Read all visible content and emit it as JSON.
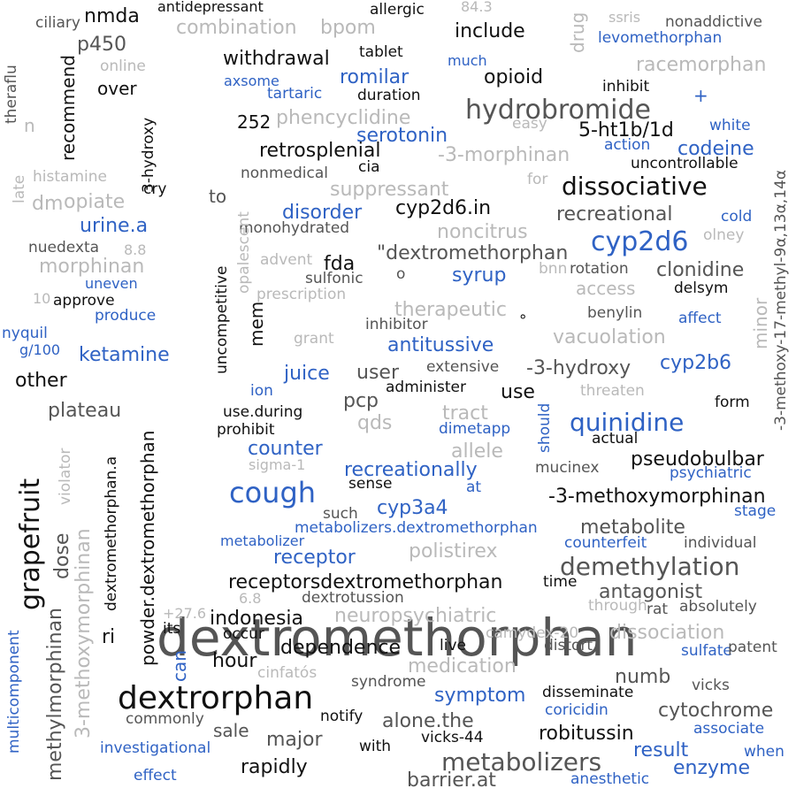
{
  "palette": {
    "black": "#111111",
    "dark": "#555555",
    "light": "#b9b9b9",
    "blue": "#2f62c4"
  },
  "words": [
    {
      "t": "dextromethorphan",
      "c": "dark"
    },
    {
      "t": "dextrorphan",
      "c": "black"
    },
    {
      "t": "grapefruit",
      "c": "black"
    },
    {
      "t": "cough",
      "c": "blue"
    },
    {
      "t": "hydrobromide",
      "c": "dark"
    },
    {
      "t": "dissociative",
      "c": "black"
    },
    {
      "t": "cyp2d6",
      "c": "blue"
    },
    {
      "t": "quinidine",
      "c": "blue"
    },
    {
      "t": "demethylation",
      "c": "dark"
    },
    {
      "t": "metabolizers",
      "c": "dark"
    },
    {
      "t": "withdrawal",
      "c": "black"
    },
    {
      "t": "nmda",
      "c": "black"
    },
    {
      "t": "include",
      "c": "black"
    },
    {
      "t": "combination",
      "c": "light"
    },
    {
      "t": "bpom",
      "c": "light"
    },
    {
      "t": "p450",
      "c": "dark"
    },
    {
      "t": "over",
      "c": "black"
    },
    {
      "t": "recommend",
      "c": "black"
    },
    {
      "t": "romilar",
      "c": "blue"
    },
    {
      "t": "opioid",
      "c": "black"
    },
    {
      "t": "racemorphan",
      "c": "light"
    },
    {
      "t": "tablet",
      "c": "black"
    },
    {
      "t": "duration",
      "c": "black"
    },
    {
      "t": "tartaric",
      "c": "blue"
    },
    {
      "t": "axsome",
      "c": "blue"
    },
    {
      "t": "much",
      "c": "blue"
    },
    {
      "t": "inhibit",
      "c": "black"
    },
    {
      "t": "252",
      "c": "black"
    },
    {
      "t": "phencyclidine",
      "c": "light"
    },
    {
      "t": "serotonin",
      "c": "blue"
    },
    {
      "t": "5-ht1b/1d",
      "c": "black"
    },
    {
      "t": "easy",
      "c": "light"
    },
    {
      "t": "white",
      "c": "blue"
    },
    {
      "t": "retrosplenial",
      "c": "black"
    },
    {
      "t": "-3-morphinan",
      "c": "light"
    },
    {
      "t": "codeine",
      "c": "blue"
    },
    {
      "t": "action",
      "c": "blue"
    },
    {
      "t": "uncontrollable",
      "c": "black"
    },
    {
      "t": "nonmedical",
      "c": "dark"
    },
    {
      "t": "cia",
      "c": "black"
    },
    {
      "t": "suppressant",
      "c": "light"
    },
    {
      "t": "histamine",
      "c": "light"
    },
    {
      "t": "cry",
      "c": "black"
    },
    {
      "t": "to",
      "c": "dark"
    },
    {
      "t": "dm",
      "c": "light"
    },
    {
      "t": "opiate",
      "c": "light"
    },
    {
      "t": "disorder",
      "c": "blue"
    },
    {
      "t": "cyp2d6.in",
      "c": "black"
    },
    {
      "t": "recreational",
      "c": "dark"
    },
    {
      "t": "cold",
      "c": "blue"
    },
    {
      "t": "urine.a",
      "c": "blue"
    },
    {
      "t": "monohydrated",
      "c": "dark"
    },
    {
      "t": "noncitrus",
      "c": "light"
    },
    {
      "t": "\"dextromethorphan",
      "c": "dark"
    },
    {
      "t": "olney",
      "c": "light"
    },
    {
      "t": "nuedexta",
      "c": "dark"
    },
    {
      "t": "8.8",
      "c": "light"
    },
    {
      "t": "morphinan",
      "c": "light"
    },
    {
      "t": "advent",
      "c": "light"
    },
    {
      "t": "fda",
      "c": "black"
    },
    {
      "t": "sulfonic",
      "c": "dark"
    },
    {
      "t": "syrup",
      "c": "blue"
    },
    {
      "t": "bnn",
      "c": "light"
    },
    {
      "t": "rotation",
      "c": "dark"
    },
    {
      "t": "clonidine",
      "c": "dark"
    },
    {
      "t": "uneven",
      "c": "blue"
    },
    {
      "t": "access",
      "c": "light"
    },
    {
      "t": "delsym",
      "c": "black"
    },
    {
      "t": "approve",
      "c": "black"
    },
    {
      "t": "prescription",
      "c": "light"
    },
    {
      "t": "produce",
      "c": "blue"
    },
    {
      "t": "therapeutic",
      "c": "light"
    },
    {
      "t": "benylin",
      "c": "dark"
    },
    {
      "t": "nyquil",
      "c": "blue"
    },
    {
      "t": "g/100",
      "c": "blue"
    },
    {
      "t": "grant",
      "c": "light"
    },
    {
      "t": "inhibitor",
      "c": "dark"
    },
    {
      "t": "vacuolation",
      "c": "light"
    },
    {
      "t": "affect",
      "c": "blue"
    },
    {
      "t": "antitussive",
      "c": "blue"
    },
    {
      "t": "ketamine",
      "c": "blue"
    },
    {
      "t": "juice",
      "c": "blue"
    },
    {
      "t": "user",
      "c": "dark"
    },
    {
      "t": "extensive",
      "c": "dark"
    },
    {
      "t": "-3-hydroxy",
      "c": "dark"
    },
    {
      "t": "cyp2b6",
      "c": "blue"
    },
    {
      "t": "other",
      "c": "black"
    },
    {
      "t": "ion",
      "c": "blue"
    },
    {
      "t": "administer",
      "c": "black"
    },
    {
      "t": "use",
      "c": "black"
    },
    {
      "t": "threaten",
      "c": "light"
    },
    {
      "t": "pcp",
      "c": "dark"
    },
    {
      "t": "plateau",
      "c": "dark"
    },
    {
      "t": "use.during",
      "c": "black"
    },
    {
      "t": "tract",
      "c": "light"
    },
    {
      "t": "form",
      "c": "black"
    },
    {
      "t": "qds",
      "c": "light"
    },
    {
      "t": "prohibit",
      "c": "black"
    },
    {
      "t": "dimetapp",
      "c": "blue"
    },
    {
      "t": "actual",
      "c": "black"
    },
    {
      "t": "counter",
      "c": "blue"
    },
    {
      "t": "allele",
      "c": "light"
    },
    {
      "t": "pseudobulbar",
      "c": "black"
    },
    {
      "t": "sigma-1",
      "c": "light"
    },
    {
      "t": "mucinex",
      "c": "dark"
    },
    {
      "t": "psychiatric",
      "c": "blue"
    },
    {
      "t": "recreationally",
      "c": "blue"
    },
    {
      "t": "sense",
      "c": "black"
    },
    {
      "t": "at",
      "c": "blue"
    },
    {
      "t": "-3-methoxymorphinan",
      "c": "black"
    },
    {
      "t": "cyp3a4",
      "c": "blue"
    },
    {
      "t": "stage",
      "c": "blue"
    },
    {
      "t": "such",
      "c": "dark"
    },
    {
      "t": "metabolizers.dextromethorphan",
      "c": "blue"
    },
    {
      "t": "metabolite",
      "c": "dark"
    },
    {
      "t": "metabolizer",
      "c": "blue"
    },
    {
      "t": "polistirex",
      "c": "light"
    },
    {
      "t": "counterfeit",
      "c": "blue"
    },
    {
      "t": "individual",
      "c": "dark"
    },
    {
      "t": "receptor",
      "c": "blue"
    },
    {
      "t": "receptorsdextromethorphan",
      "c": "black"
    },
    {
      "t": "time",
      "c": "black"
    },
    {
      "t": "antagonist",
      "c": "dark"
    },
    {
      "t": "6.8",
      "c": "light"
    },
    {
      "t": "dextrotussion",
      "c": "dark"
    },
    {
      "t": "through",
      "c": "light"
    },
    {
      "t": "rat",
      "c": "dark"
    },
    {
      "t": "absolutely",
      "c": "dark"
    },
    {
      "t": "+27.6",
      "c": "light"
    },
    {
      "t": "ri",
      "c": "black"
    },
    {
      "t": "its",
      "c": "black"
    },
    {
      "t": "indonesia",
      "c": "black"
    },
    {
      "t": "neuropsychiatric",
      "c": "light"
    },
    {
      "t": "occur",
      "c": "black"
    },
    {
      "t": "dissociation",
      "c": "light"
    },
    {
      "t": "camydex-20",
      "c": "light"
    },
    {
      "t": "distort",
      "c": "dark"
    },
    {
      "t": "sulfate",
      "c": "blue"
    },
    {
      "t": "patent",
      "c": "dark"
    },
    {
      "t": "hour",
      "c": "black"
    },
    {
      "t": "dependence",
      "c": "black"
    },
    {
      "t": "live",
      "c": "black"
    },
    {
      "t": "medication",
      "c": "light"
    },
    {
      "t": "numb",
      "c": "dark"
    },
    {
      "t": "cinfatós",
      "c": "light"
    },
    {
      "t": "syndrome",
      "c": "dark"
    },
    {
      "t": "symptom",
      "c": "blue"
    },
    {
      "t": "disseminate",
      "c": "black"
    },
    {
      "t": "vicks",
      "c": "dark"
    },
    {
      "t": "cytochrome",
      "c": "dark"
    },
    {
      "t": "notify",
      "c": "black"
    },
    {
      "t": "alone.the",
      "c": "dark"
    },
    {
      "t": "coricidin",
      "c": "blue"
    },
    {
      "t": "commonly",
      "c": "dark"
    },
    {
      "t": "sale",
      "c": "dark"
    },
    {
      "t": "major",
      "c": "dark"
    },
    {
      "t": "robitussin",
      "c": "black"
    },
    {
      "t": "associate",
      "c": "blue"
    },
    {
      "t": "investigational",
      "c": "blue"
    },
    {
      "t": "with",
      "c": "black"
    },
    {
      "t": "vicks-44",
      "c": "black"
    },
    {
      "t": "result",
      "c": "blue"
    },
    {
      "t": "when",
      "c": "blue"
    },
    {
      "t": "rapidly",
      "c": "black"
    },
    {
      "t": "enzyme",
      "c": "blue"
    },
    {
      "t": "effect",
      "c": "blue"
    },
    {
      "t": "barrier.at",
      "c": "dark"
    },
    {
      "t": "anesthetic",
      "c": "blue"
    },
    {
      "t": "ciliary",
      "c": "dark"
    },
    {
      "t": "antidepressant",
      "c": "black"
    },
    {
      "t": "allergic",
      "c": "black"
    },
    {
      "t": "84.3",
      "c": "light"
    },
    {
      "t": "ssris",
      "c": "light"
    },
    {
      "t": "nonaddictive",
      "c": "dark"
    },
    {
      "t": "levomethorphan",
      "c": "blue"
    },
    {
      "t": "online",
      "c": "light"
    },
    {
      "t": "n",
      "c": "light"
    },
    {
      "t": "for",
      "c": "light"
    },
    {
      "t": "10",
      "c": "light"
    },
    {
      "t": "o",
      "c": "dark"
    },
    {
      "t": "°",
      "c": "black"
    },
    {
      "t": "+",
      "c": "blue"
    },
    {
      "t": "theraflu",
      "c": "dark"
    },
    {
      "t": "3-hydroxy",
      "c": "black"
    },
    {
      "t": "late",
      "c": "light"
    },
    {
      "t": "drug",
      "c": "light"
    },
    {
      "t": "minor",
      "c": "light"
    },
    {
      "t": "-3-methoxy-17-methyl-9α,13α,14α",
      "c": "dark"
    },
    {
      "t": "opalescent",
      "c": "light"
    },
    {
      "t": "uncompetitive",
      "c": "black"
    },
    {
      "t": "mem",
      "c": "black"
    },
    {
      "t": "powder.dextromethorphan",
      "c": "black"
    },
    {
      "t": "can",
      "c": "blue"
    },
    {
      "t": "dextromethorphan.a",
      "c": "black"
    },
    {
      "t": "dose",
      "c": "dark"
    },
    {
      "t": "methylmorphinan",
      "c": "dark"
    },
    {
      "t": "3-methoxymorphinan",
      "c": "light"
    },
    {
      "t": "violator",
      "c": "light"
    },
    {
      "t": "multicomponent",
      "c": "blue"
    },
    {
      "t": "should",
      "c": "blue"
    }
  ]
}
